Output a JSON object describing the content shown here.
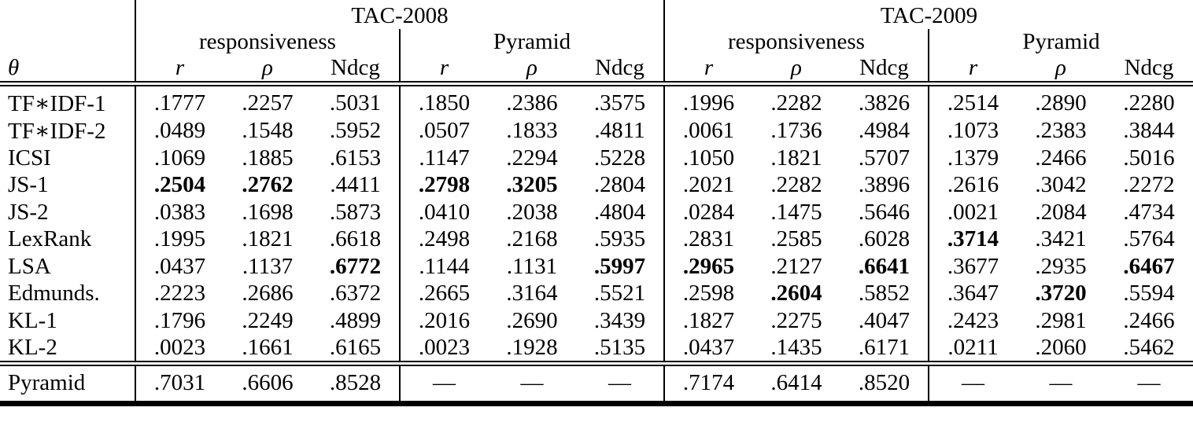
{
  "table": {
    "row_header_symbol": "θ",
    "col_groups": [
      {
        "label": "TAC-2008",
        "subgroups": [
          "responsiveness",
          "Pyramid"
        ]
      },
      {
        "label": "TAC-2009",
        "subgroups": [
          "responsiveness",
          "Pyramid"
        ]
      }
    ],
    "metrics": [
      "r",
      "ρ",
      "Ndcg"
    ],
    "rows": [
      {
        "label": "TF∗IDF-1",
        "values": [
          ".1777",
          ".2257",
          ".5031",
          ".1850",
          ".2386",
          ".3575",
          ".1996",
          ".2282",
          ".3826",
          ".2514",
          ".2890",
          ".2280"
        ],
        "bold": []
      },
      {
        "label": "TF∗IDF-2",
        "values": [
          ".0489",
          ".1548",
          ".5952",
          ".0507",
          ".1833",
          ".4811",
          ".0061",
          ".1736",
          ".4984",
          ".1073",
          ".2383",
          ".3844"
        ],
        "bold": []
      },
      {
        "label": "ICSI",
        "values": [
          ".1069",
          ".1885",
          ".6153",
          ".1147",
          ".2294",
          ".5228",
          ".1050",
          ".1821",
          ".5707",
          ".1379",
          ".2466",
          ".5016"
        ],
        "bold": []
      },
      {
        "label": "JS-1",
        "values": [
          ".2504",
          ".2762",
          ".4411",
          ".2798",
          ".3205",
          ".2804",
          ".2021",
          ".2282",
          ".3896",
          ".2616",
          ".3042",
          ".2272"
        ],
        "bold": [
          0,
          1,
          3,
          4
        ]
      },
      {
        "label": "JS-2",
        "values": [
          ".0383",
          ".1698",
          ".5873",
          ".0410",
          ".2038",
          ".4804",
          ".0284",
          ".1475",
          ".5646",
          ".0021",
          ".2084",
          ".4734"
        ],
        "bold": []
      },
      {
        "label": "LexRank",
        "values": [
          ".1995",
          ".1821",
          ".6618",
          ".2498",
          ".2168",
          ".5935",
          ".2831",
          ".2585",
          ".6028",
          ".3714",
          ".3421",
          ".5764"
        ],
        "bold": [
          9
        ]
      },
      {
        "label": "LSA",
        "values": [
          ".0437",
          ".1137",
          ".6772",
          ".1144",
          ".1131",
          ".5997",
          ".2965",
          ".2127",
          ".6641",
          ".3677",
          ".2935",
          ".6467"
        ],
        "bold": [
          2,
          5,
          6,
          8,
          11
        ]
      },
      {
        "label": "Edmunds.",
        "values": [
          ".2223",
          ".2686",
          ".6372",
          ".2665",
          ".3164",
          ".5521",
          ".2598",
          ".2604",
          ".5852",
          ".3647",
          ".3720",
          ".5594"
        ],
        "bold": [
          7,
          10
        ]
      },
      {
        "label": "KL-1",
        "values": [
          ".1796",
          ".2249",
          ".4899",
          ".2016",
          ".2690",
          ".3439",
          ".1827",
          ".2275",
          ".4047",
          ".2423",
          ".2981",
          ".2466"
        ],
        "bold": []
      },
      {
        "label": "KL-2",
        "values": [
          ".0023",
          ".1661",
          ".6165",
          ".0023",
          ".1928",
          ".5135",
          ".0437",
          ".1435",
          ".6171",
          ".0211",
          ".2060",
          ".5462"
        ],
        "bold": []
      }
    ],
    "footer_rows": [
      {
        "label": "Pyramid",
        "values": [
          ".7031",
          ".6606",
          ".8528",
          "—",
          "—",
          "—",
          ".7174",
          ".6414",
          ".8520",
          "—",
          "—",
          "—"
        ],
        "bold": []
      }
    ]
  }
}
